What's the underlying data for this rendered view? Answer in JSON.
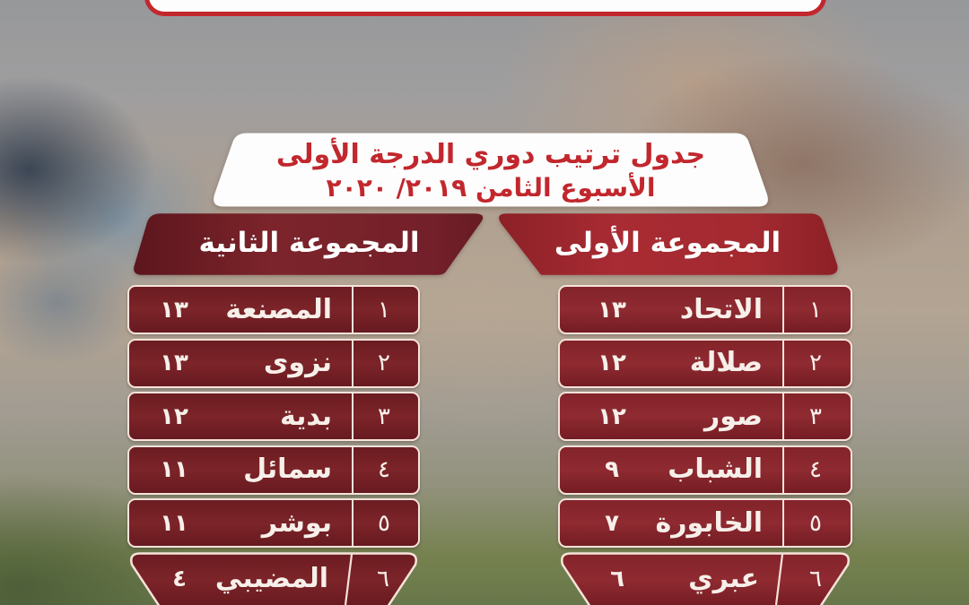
{
  "header": {
    "title_line1": "جدول ترتيب دوري الدرجة الأولى",
    "title_line2": "الأسبوع الثامن ٢٠١٩/ ٢٠٢٠"
  },
  "groups": [
    {
      "label": "المجموعة الأولى",
      "rows": [
        {
          "rank": "١",
          "team": "الاتحاد",
          "points": "١٣"
        },
        {
          "rank": "٢",
          "team": "صلالة",
          "points": "١٢"
        },
        {
          "rank": "٣",
          "team": "صور",
          "points": "١٢"
        },
        {
          "rank": "٤",
          "team": "الشباب",
          "points": "٩"
        },
        {
          "rank": "٥",
          "team": "الخابورة",
          "points": "٧"
        },
        {
          "rank": "٦",
          "team": "عبري",
          "points": "٦"
        }
      ]
    },
    {
      "label": "المجموعة الثانية",
      "rows": [
        {
          "rank": "١",
          "team": "المصنعة",
          "points": "١٣"
        },
        {
          "rank": "٢",
          "team": "نزوى",
          "points": "١٣"
        },
        {
          "rank": "٣",
          "team": "بدية",
          "points": "١٢"
        },
        {
          "rank": "٤",
          "team": "سمائل",
          "points": "١١"
        },
        {
          "rank": "٥",
          "team": "بوشر",
          "points": "١١"
        },
        {
          "rank": "٦",
          "team": "المضيبي",
          "points": "٤"
        }
      ]
    }
  ],
  "chart_data": [
    {
      "type": "table",
      "title": "المجموعة الأولى",
      "rows": [
        {
          "rank": 1,
          "team": "الاتحاد",
          "points": 13
        },
        {
          "rank": 2,
          "team": "صلالة",
          "points": 12
        },
        {
          "rank": 3,
          "team": "صور",
          "points": 12
        },
        {
          "rank": 4,
          "team": "الشباب",
          "points": 9
        },
        {
          "rank": 5,
          "team": "الخابورة",
          "points": 7
        },
        {
          "rank": 6,
          "team": "عبري",
          "points": 6
        }
      ]
    },
    {
      "type": "table",
      "title": "المجموعة الثانية",
      "rows": [
        {
          "rank": 1,
          "team": "المصنعة",
          "points": 13
        },
        {
          "rank": 2,
          "team": "نزوى",
          "points": 13
        },
        {
          "rank": 3,
          "team": "بدية",
          "points": 12
        },
        {
          "rank": 4,
          "team": "سمائل",
          "points": 11
        },
        {
          "rank": 5,
          "team": "بوشر",
          "points": 11
        },
        {
          "rank": 6,
          "team": "المضيبي",
          "points": 4
        }
      ]
    }
  ],
  "colors": {
    "accent_red": "#c1272d",
    "ribbon_group1": "#a42a31",
    "ribbon_group2": "#6f1f27",
    "row_fill": "#7b2026",
    "row_border": "#f6e3da",
    "text_on_red": "#ffffff"
  }
}
